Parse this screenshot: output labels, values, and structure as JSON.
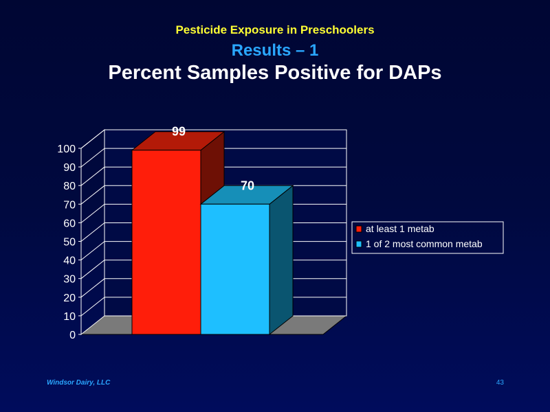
{
  "slide": {
    "subtitle1": "Pesticide Exposure in Preschoolers",
    "subtitle2": "Results – 1",
    "title": "Percent Samples Positive for DAPs",
    "footer_left": "Windsor Dairy, LLC",
    "page_number": "43"
  },
  "chart_data": {
    "type": "bar",
    "style": "3d",
    "categories": [
      ""
    ],
    "series": [
      {
        "name": "at least 1 metab",
        "values": [
          99
        ],
        "color": "#ff1e0a"
      },
      {
        "name": "1 of 2 most common metab",
        "values": [
          70
        ],
        "color": "#1ebfff"
      }
    ],
    "data_labels": [
      "99",
      "70"
    ],
    "y_ticks": [
      0,
      10,
      20,
      30,
      40,
      50,
      60,
      70,
      80,
      90,
      100
    ],
    "ylim": [
      0,
      100
    ],
    "grid": true,
    "legend_position": "right"
  }
}
